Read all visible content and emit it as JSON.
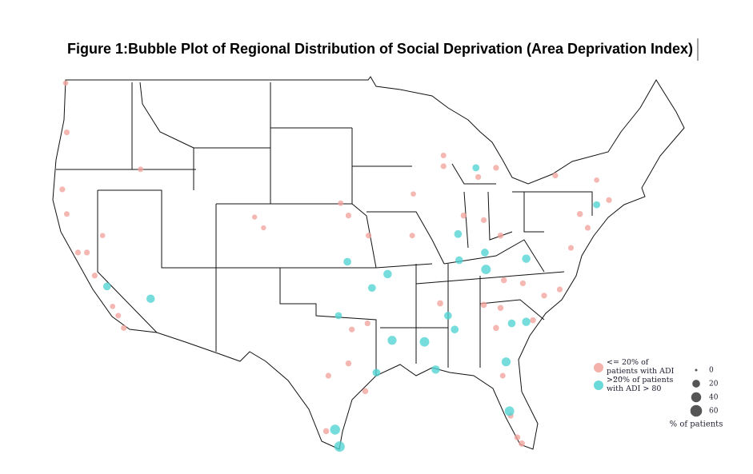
{
  "chart_data": {
    "type": "bubble-map",
    "title": "Figure 1:Bubble Plot of Regional Distribution of Social Deprivation (Area Deprivation Index)",
    "series": [
      {
        "name": "<= 20% of patients with ADI >80",
        "color": "#f2a39c",
        "lon": [
          -121.8,
          -121.7,
          -122.1,
          -121.7,
          -120.7,
          -119.9,
          -119.2,
          -118.5,
          -115.1,
          -117.6,
          -117.1,
          -116.6,
          -104.9,
          -104.1,
          -97.2,
          -96.5,
          -94.7,
          -90.8,
          -90.7,
          -88.0,
          -88.0,
          -86.2,
          -84.4,
          -82.9,
          -84.9,
          -83.3,
          -78.0,
          -74.3,
          -73.2,
          -75.8,
          -75.1,
          -76.6,
          -82.6,
          -80.9,
          -79.0,
          -77.6,
          -88.3,
          -84.4,
          -83.3,
          -82.9,
          -80.0,
          -96.2,
          -94.8,
          -96.5,
          -98.3,
          -95.0,
          -82.7,
          -82.0,
          -81.4,
          -81.0,
          -98.5
        ],
        "lat": [
          49.2,
          46.0,
          42.3,
          40.7,
          38.2,
          38.2,
          36.7,
          39.3,
          43.6,
          34.7,
          34.1,
          33.3,
          40.5,
          39.8,
          41.4,
          40.6,
          39.3,
          39.3,
          42.0,
          44.5,
          43.8,
          40.6,
          40.3,
          39.3,
          43.1,
          43.7,
          43.2,
          42.9,
          41.6,
          40.7,
          39.8,
          38.5,
          36.4,
          36.2,
          35.4,
          35.8,
          34.9,
          34.8,
          33.3,
          34.6,
          33.8,
          33.2,
          33.6,
          31.0,
          30.2,
          29.2,
          30.2,
          27.6,
          26.2,
          25.8,
          26.6
        ],
        "values": [
          6,
          8,
          8,
          7,
          8,
          8,
          8,
          6,
          7,
          6,
          7,
          8,
          5,
          5,
          7,
          8,
          8,
          7,
          6,
          7,
          8,
          9,
          8,
          9,
          8,
          8,
          8,
          6,
          8,
          9,
          8,
          7,
          9,
          8,
          8,
          8,
          10,
          10,
          9,
          9,
          9,
          8,
          8,
          9,
          8,
          9,
          7,
          8,
          9,
          10,
          9
        ]
      },
      {
        "name": ">20% of patients with ADI > 80",
        "color": "#4fd4d2",
        "lon": [
          -85.1,
          -118.1,
          -114.2,
          -96.6,
          -93.0,
          -94.4,
          -97.4,
          -86.7,
          -86.6,
          -84.3,
          -84.2,
          -80.6,
          -87.6,
          -89.7,
          -92.6,
          -87.0,
          -81.9,
          -80.6,
          -82.4,
          -94.0,
          -88.7,
          -97.7,
          -97.3,
          -82.1,
          -74.3
        ],
        "lat": [
          43.7,
          36.0,
          35.2,
          37.6,
          36.8,
          35.9,
          34.1,
          39.4,
          37.7,
          38.2,
          37.1,
          37.8,
          34.1,
          32.4,
          32.5,
          33.2,
          33.6,
          33.7,
          31.1,
          30.4,
          30.6,
          26.7,
          25.6,
          27.9,
          41.3
        ],
        "values": [
          15,
          20,
          25,
          20,
          25,
          20,
          15,
          20,
          20,
          20,
          35,
          25,
          20,
          35,
          30,
          20,
          20,
          25,
          30,
          20,
          25,
          40,
          45,
          35,
          15
        ]
      }
    ],
    "size_legend": {
      "title": "% of patients",
      "values": [
        0,
        20,
        40,
        60
      ]
    }
  }
}
